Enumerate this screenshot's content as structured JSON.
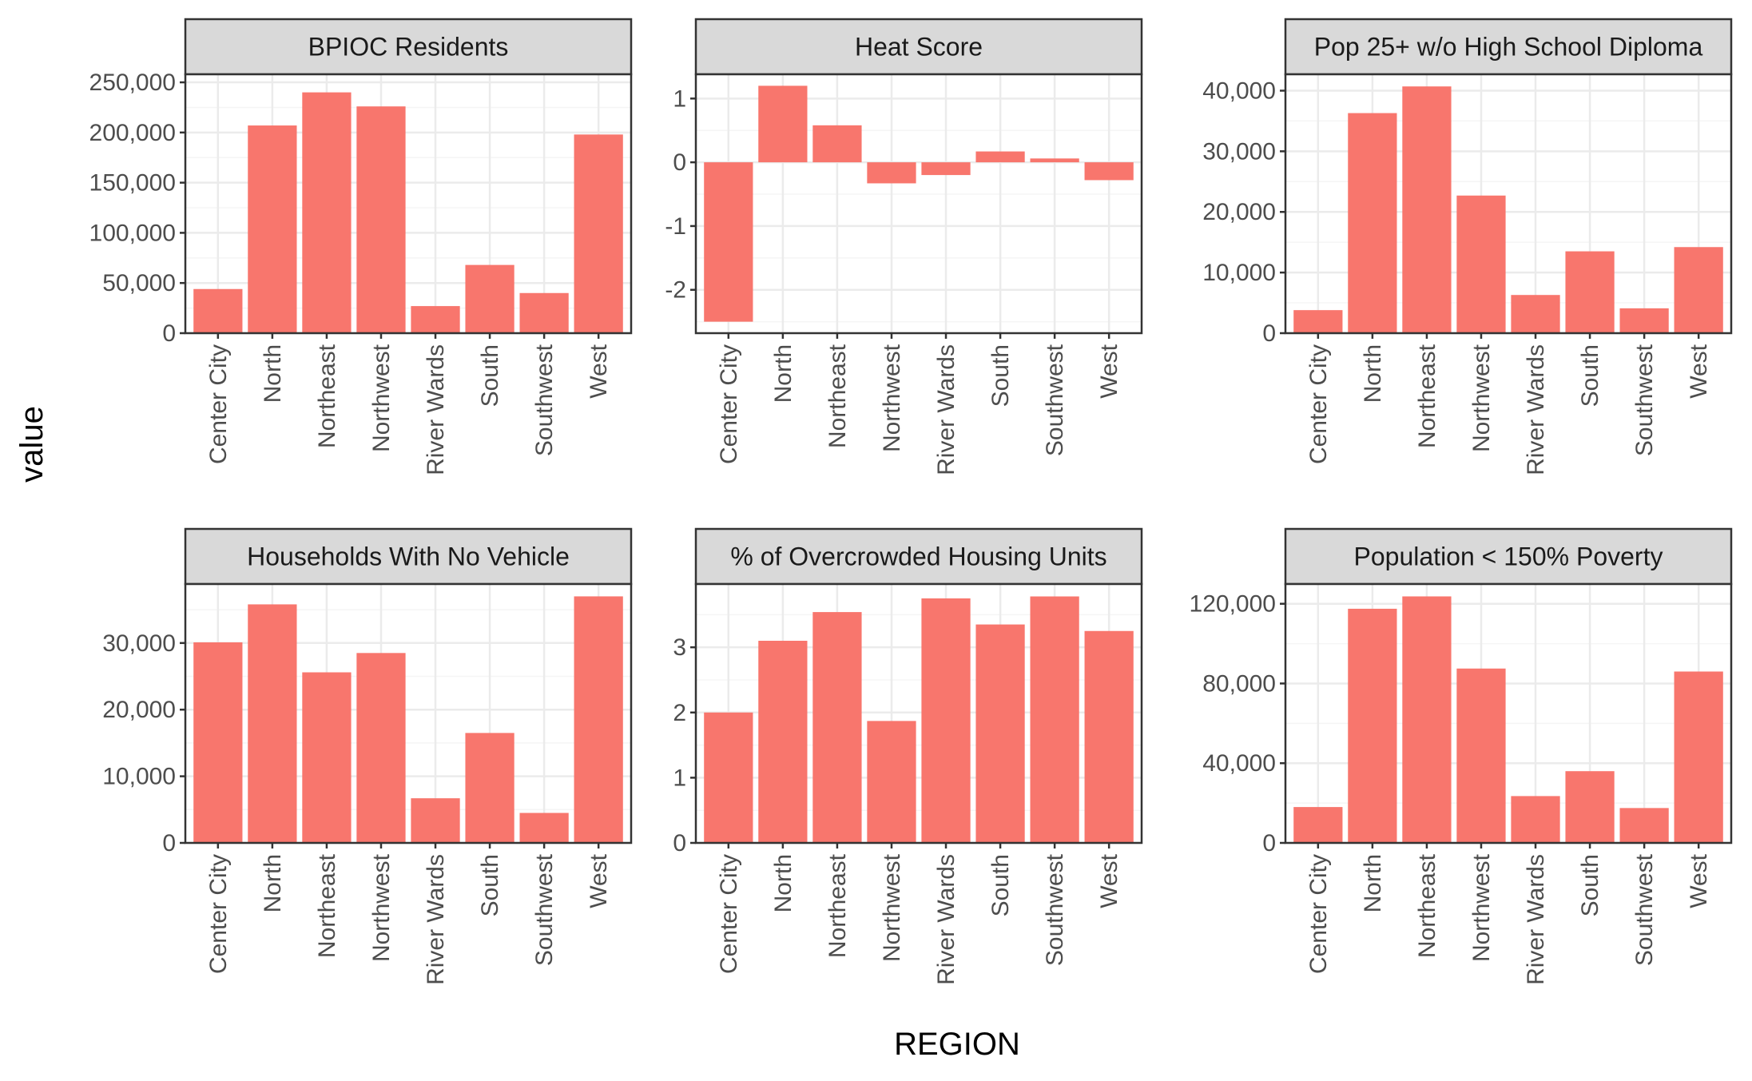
{
  "figure": {
    "xlabel": "REGION",
    "ylabel": "value"
  },
  "colors": {
    "bar": "#F8766D",
    "strip_bg": "#D9D9D9",
    "panel_border": "#333333",
    "grid_major": "#EBEBEB",
    "grid_minor": "#F5F5F5",
    "tick_label": "#4D4D4D"
  },
  "chart_data": [
    {
      "type": "bar",
      "title": "BPIOC Residents",
      "categories": [
        "Center City",
        "North",
        "Northeast",
        "Northwest",
        "River Wards",
        "South",
        "Southwest",
        "West"
      ],
      "values": [
        44000,
        207000,
        240000,
        226000,
        27000,
        68000,
        40000,
        198000
      ],
      "ylim": [
        0,
        258000
      ],
      "yticks": [
        0,
        50000,
        100000,
        150000,
        200000,
        250000
      ],
      "ytick_labels": [
        "0",
        "50,000",
        "100,000",
        "150,000",
        "200,000",
        "250,000"
      ],
      "grid": true
    },
    {
      "type": "bar",
      "title": "Heat Score",
      "categories": [
        "Center City",
        "North",
        "Northeast",
        "Northwest",
        "River Wards",
        "South",
        "Southwest",
        "West"
      ],
      "values": [
        -2.5,
        1.2,
        0.58,
        -0.33,
        -0.2,
        0.17,
        0.06,
        -0.28
      ],
      "ylim": [
        -2.68,
        1.38
      ],
      "yticks": [
        -2,
        -1,
        0,
        1
      ],
      "ytick_labels": [
        "-2",
        "-1",
        "0",
        "1"
      ],
      "grid": true
    },
    {
      "type": "bar",
      "title": "Pop 25+ w/o High School Diploma",
      "categories": [
        "Center City",
        "North",
        "Northeast",
        "Northwest",
        "River Wards",
        "South",
        "Southwest",
        "West"
      ],
      "values": [
        3800,
        36300,
        40700,
        22700,
        6300,
        13500,
        4100,
        14200
      ],
      "ylim": [
        0,
        42700
      ],
      "yticks": [
        0,
        10000,
        20000,
        30000,
        40000
      ],
      "ytick_labels": [
        "0",
        "10,000",
        "20,000",
        "30,000",
        "40,000"
      ],
      "grid": true
    },
    {
      "type": "bar",
      "title": "Households With No Vehicle",
      "categories": [
        "Center City",
        "North",
        "Northeast",
        "Northwest",
        "River Wards",
        "South",
        "Southwest",
        "West"
      ],
      "values": [
        30100,
        35800,
        25600,
        28500,
        6700,
        16500,
        4500,
        37000
      ],
      "ylim": [
        0,
        38850
      ],
      "yticks": [
        0,
        10000,
        20000,
        30000
      ],
      "ytick_labels": [
        "0",
        "10,000",
        "20,000",
        "30,000"
      ],
      "grid": true
    },
    {
      "type": "bar",
      "title": "% of Overcrowded Housing Units",
      "categories": [
        "Center City",
        "North",
        "Northeast",
        "Northwest",
        "River Wards",
        "South",
        "Southwest",
        "West"
      ],
      "values": [
        2.0,
        3.1,
        3.54,
        1.87,
        3.75,
        3.35,
        3.78,
        3.25
      ],
      "ylim": [
        0,
        3.97
      ],
      "yticks": [
        0,
        1,
        2,
        3
      ],
      "ytick_labels": [
        "0",
        "1",
        "2",
        "3"
      ],
      "grid": true
    },
    {
      "type": "bar",
      "title": "Population < 150% Poverty",
      "categories": [
        "Center City",
        "North",
        "Northeast",
        "Northwest",
        "River Wards",
        "South",
        "Southwest",
        "West"
      ],
      "values": [
        18000,
        117500,
        123700,
        87500,
        23500,
        36000,
        17500,
        86000
      ],
      "ylim": [
        0,
        129900
      ],
      "yticks": [
        0,
        40000,
        80000,
        120000
      ],
      "ytick_labels": [
        "0",
        "40,000",
        "80,000",
        "120,000"
      ],
      "grid": true
    }
  ]
}
